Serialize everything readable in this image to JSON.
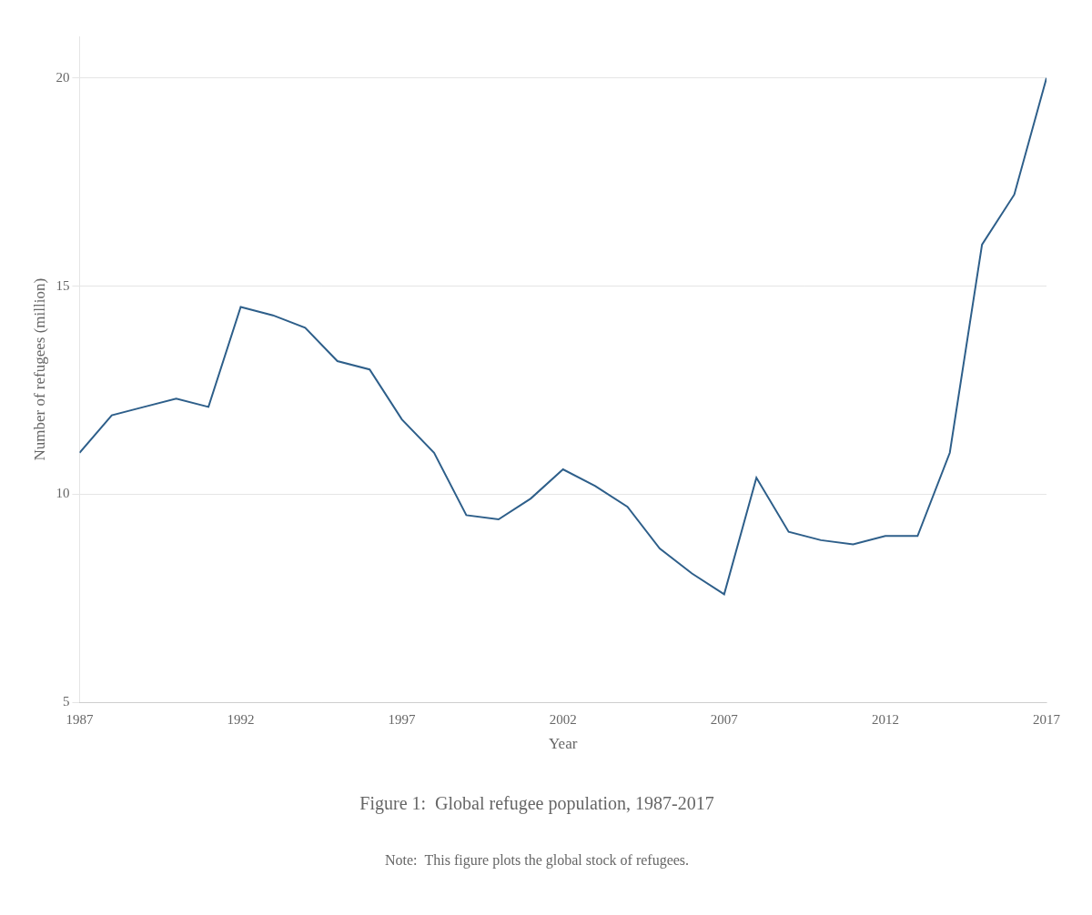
{
  "chart_data": {
    "type": "line",
    "title": "Figure 1:  Global refugee population, 1987-2017",
    "note": "Note:  This figure plots the global stock of refugees.",
    "xlabel": "Year",
    "ylabel": "Number of refugees (million)",
    "x": [
      1987,
      1988,
      1989,
      1990,
      1991,
      1992,
      1993,
      1994,
      1995,
      1996,
      1997,
      1998,
      1999,
      2000,
      2001,
      2002,
      2003,
      2004,
      2005,
      2006,
      2007,
      2008,
      2009,
      2010,
      2011,
      2012,
      2013,
      2014,
      2015,
      2016,
      2017
    ],
    "values": [
      11.0,
      11.9,
      12.1,
      12.3,
      12.1,
      14.5,
      14.3,
      14.0,
      13.2,
      13.0,
      11.8,
      11.0,
      9.5,
      9.4,
      9.9,
      10.6,
      10.2,
      9.7,
      8.7,
      8.1,
      7.6,
      10.4,
      9.1,
      8.9,
      8.8,
      9.0,
      9.0,
      11.0,
      16.0,
      17.2,
      20.0
    ],
    "color": "#2e5f8a",
    "xlim": [
      1987,
      2017
    ],
    "ylim": [
      5,
      21
    ],
    "xticks": [
      1987,
      1992,
      1997,
      2002,
      2007,
      2012,
      2017
    ],
    "yticks": [
      5,
      10,
      15,
      20
    ],
    "grid": true
  }
}
